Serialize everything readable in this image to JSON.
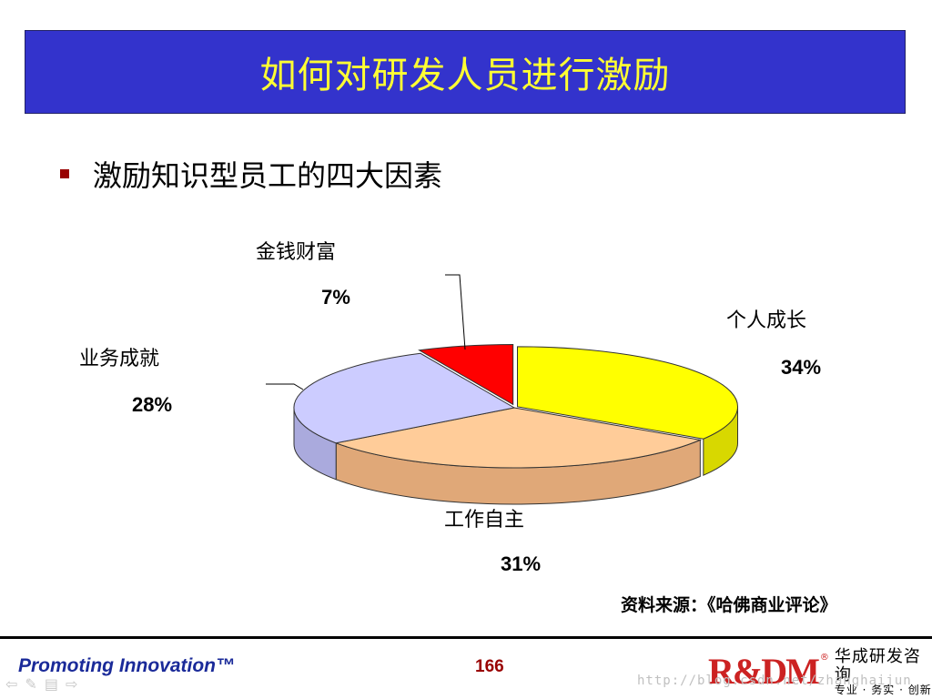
{
  "title": "如何对研发人员进行激励",
  "bullet": "激励知识型员工的四大因素",
  "chart_data": {
    "type": "pie",
    "style": "3d-exploded",
    "labels": [
      "个人成长",
      "工作自主",
      "业务成就",
      "金钱财富"
    ],
    "values": [
      34,
      31,
      28,
      7
    ],
    "value_labels": [
      "34%",
      "31%",
      "28%",
      "7%"
    ],
    "colors": [
      "#ffff00",
      "#ffcc99",
      "#ccccff",
      "#ff0000"
    ],
    "side_colors": [
      "#d8d800",
      "#e0a878",
      "#aaaadd",
      "#cc0000"
    ],
    "title": "",
    "legend": "none"
  },
  "source_note": "资料来源：《哈佛商业评论》",
  "footer": {
    "tagline": "Promoting Innovation™",
    "page_number": "166",
    "logo_mark": "R&DM",
    "logo_reg": "®",
    "company_name": "华成研发咨询",
    "company_slogan": "专业 · 务实 · 创新",
    "watermark": "http://blog.csdn.net/zhanghaijun"
  },
  "nav_icons": [
    "back-arrow-icon",
    "pen-icon",
    "menu-icon",
    "forward-arrow-icon"
  ]
}
